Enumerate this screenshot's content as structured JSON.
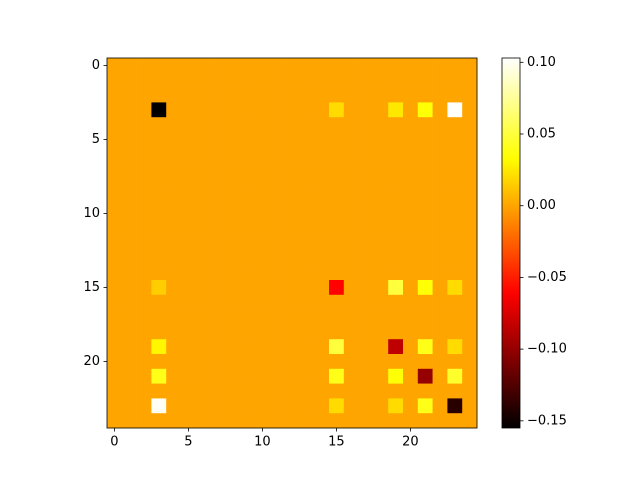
{
  "chart_data": {
    "type": "heatmap",
    "colormap": "hot",
    "clim": [
      -0.155,
      0.103
    ],
    "xlim": [
      -0.5,
      24.5
    ],
    "ylim": [
      24.5,
      -0.5
    ],
    "xticks": [
      0,
      5,
      10,
      15,
      20
    ],
    "yticks": [
      0,
      5,
      10,
      15,
      20
    ],
    "cticks": [
      {
        "value": -0.15,
        "label": "−0.15"
      },
      {
        "value": -0.1,
        "label": "−0.10"
      },
      {
        "value": -0.05,
        "label": "−0.05"
      },
      {
        "value": 0,
        "label": "0.00"
      },
      {
        "value": 0.05,
        "label": "0.05"
      },
      {
        "value": 0.1,
        "label": "0.10"
      }
    ],
    "z": [
      [
        0,
        0,
        0,
        0,
        0,
        0,
        0,
        0,
        0,
        0,
        0,
        0,
        0,
        0,
        0,
        0,
        0,
        0,
        0,
        0,
        0,
        0,
        0,
        0,
        0
      ],
      [
        0,
        0,
        0,
        0,
        0,
        0,
        0,
        0,
        0,
        0,
        0,
        0,
        0,
        0,
        0,
        0,
        0,
        0,
        0,
        0,
        0,
        0,
        0,
        0,
        0
      ],
      [
        0,
        0,
        0,
        0,
        0,
        0,
        0,
        0,
        0,
        0,
        0,
        0,
        0,
        0,
        0,
        0,
        0,
        0,
        0,
        0,
        0,
        0,
        0,
        0,
        0
      ],
      [
        0,
        0,
        0,
        -0.155,
        0,
        0,
        0,
        0,
        0,
        0,
        0,
        0,
        0,
        0,
        0,
        0.02,
        0,
        0,
        0,
        0.025,
        0,
        0.035,
        0,
        0.103,
        0
      ],
      [
        0,
        0,
        0,
        0,
        0,
        0,
        0,
        0,
        0,
        0,
        0,
        0,
        0,
        0,
        0,
        0,
        0,
        0,
        0,
        0,
        0,
        0,
        0,
        0,
        0
      ],
      [
        0,
        0,
        0,
        0,
        0,
        0,
        0,
        0,
        0,
        0,
        0,
        0,
        0,
        0,
        0,
        0,
        0,
        0,
        0,
        0,
        0,
        0,
        0,
        0,
        0
      ],
      [
        0,
        0,
        0,
        0,
        0,
        0,
        0,
        0,
        0,
        0,
        0,
        0,
        0,
        0,
        0,
        0,
        0,
        0,
        0,
        0,
        0,
        0,
        0,
        0,
        0
      ],
      [
        0,
        0,
        0,
        0,
        0,
        0,
        0,
        0,
        0,
        0,
        0,
        0,
        0,
        0,
        0,
        0,
        0,
        0,
        0,
        0,
        0,
        0,
        0,
        0,
        0
      ],
      [
        0,
        0,
        0,
        0,
        0,
        0,
        0,
        0,
        0,
        0,
        0,
        0,
        0,
        0,
        0,
        0,
        0,
        0,
        0,
        0,
        0,
        0,
        0,
        0,
        0
      ],
      [
        0,
        0,
        0,
        0,
        0,
        0,
        0,
        0,
        0,
        0,
        0,
        0,
        0,
        0,
        0,
        0,
        0,
        0,
        0,
        0,
        0,
        0,
        0,
        0,
        0
      ],
      [
        0,
        0,
        0,
        0,
        0,
        0,
        0,
        0,
        0,
        0,
        0,
        0,
        0,
        0,
        0,
        0,
        0,
        0,
        0,
        0,
        0,
        0,
        0,
        0,
        0
      ],
      [
        0,
        0,
        0,
        0,
        0,
        0,
        0,
        0,
        0,
        0,
        0,
        0,
        0,
        0,
        0,
        0,
        0,
        0,
        0,
        0,
        0,
        0,
        0,
        0,
        0
      ],
      [
        0,
        0,
        0,
        0,
        0,
        0,
        0,
        0,
        0,
        0,
        0,
        0,
        0,
        0,
        0,
        0,
        0,
        0,
        0,
        0,
        0,
        0,
        0,
        0,
        0
      ],
      [
        0,
        0,
        0,
        0,
        0,
        0,
        0,
        0,
        0,
        0,
        0,
        0,
        0,
        0,
        0,
        0,
        0,
        0,
        0,
        0,
        0,
        0,
        0,
        0,
        0
      ],
      [
        0,
        0,
        0,
        0,
        0,
        0,
        0,
        0,
        0,
        0,
        0,
        0,
        0,
        0,
        0,
        0,
        0,
        0,
        0,
        0,
        0,
        0,
        0,
        0,
        0
      ],
      [
        0,
        0,
        0,
        0.015,
        0,
        0,
        0,
        0,
        0,
        0,
        0,
        0,
        0,
        0,
        0,
        -0.06,
        0,
        0,
        0,
        0.05,
        0,
        0.035,
        0,
        0.02,
        0
      ],
      [
        0,
        0,
        0,
        0,
        0,
        0,
        0,
        0,
        0,
        0,
        0,
        0,
        0,
        0,
        0,
        0,
        0,
        0,
        0,
        0,
        0,
        0,
        0,
        0,
        0
      ],
      [
        0,
        0,
        0,
        0,
        0,
        0,
        0,
        0,
        0,
        0,
        0,
        0,
        0,
        0,
        0,
        0,
        0,
        0,
        0,
        0,
        0,
        0,
        0,
        0,
        0
      ],
      [
        0,
        0,
        0,
        0,
        0,
        0,
        0,
        0,
        0,
        0,
        0,
        0,
        0,
        0,
        0,
        0,
        0,
        0,
        0,
        0,
        0,
        0,
        0,
        0,
        0
      ],
      [
        0,
        0,
        0,
        0.03,
        0,
        0,
        0,
        0,
        0,
        0,
        0,
        0,
        0,
        0,
        0,
        0.05,
        0,
        0,
        0,
        -0.085,
        0,
        0.04,
        0,
        0.02,
        0
      ],
      [
        0,
        0,
        0,
        0,
        0,
        0,
        0,
        0,
        0,
        0,
        0,
        0,
        0,
        0,
        0,
        0,
        0,
        0,
        0,
        0,
        0,
        0,
        0,
        0,
        0
      ],
      [
        0,
        0,
        0,
        0.04,
        0,
        0,
        0,
        0,
        0,
        0,
        0,
        0,
        0,
        0,
        0,
        0.04,
        0,
        0,
        0,
        0.035,
        0,
        -0.1,
        0,
        0.045,
        0
      ],
      [
        0,
        0,
        0,
        0,
        0,
        0,
        0,
        0,
        0,
        0,
        0,
        0,
        0,
        0,
        0,
        0,
        0,
        0,
        0,
        0,
        0,
        0,
        0,
        0,
        0
      ],
      [
        0,
        0,
        0,
        0.1,
        0,
        0,
        0,
        0,
        0,
        0,
        0,
        0,
        0,
        0,
        0,
        0.02,
        0,
        0,
        0,
        0.02,
        0,
        0.04,
        0,
        -0.14,
        0
      ],
      [
        0,
        0,
        0,
        0,
        0,
        0,
        0,
        0,
        0,
        0,
        0,
        0,
        0,
        0,
        0,
        0,
        0,
        0,
        0,
        0,
        0,
        0,
        0,
        0,
        0
      ]
    ]
  }
}
